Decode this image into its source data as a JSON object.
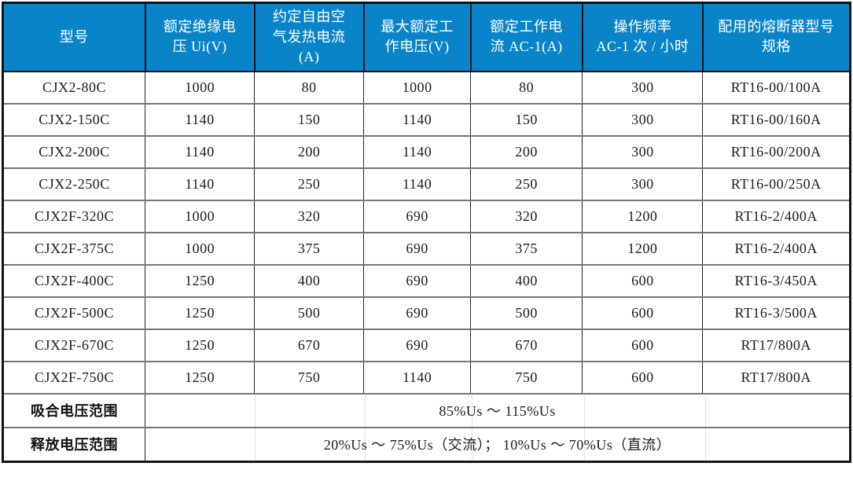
{
  "colors": {
    "header_bg": "#0a84c8",
    "header_text": "#ffffff",
    "body_text": "#1c1c1c",
    "grid_horizontal": "#767676",
    "grid_vertical": "#242424",
    "outer_border": "#141414"
  },
  "table": {
    "columns": [
      {
        "id": "model",
        "label": "型号"
      },
      {
        "id": "insulation-voltage",
        "label": "额定绝缘电\n压 Ui(V)"
      },
      {
        "id": "thermal-current",
        "label": "约定自由空\n气发热电流\n(A)"
      },
      {
        "id": "max-working-voltage",
        "label": "最大额定工\n作电压(V)"
      },
      {
        "id": "working-current",
        "label": "额定工作电\n流 AC-1(A)"
      },
      {
        "id": "operating-frequency",
        "label": "操作频率\nAC-1 次 / 小时"
      },
      {
        "id": "fuse-spec",
        "label": "配用的熔断器型号\n规格"
      }
    ],
    "rows": [
      [
        "CJX2-80C",
        "1000",
        "80",
        "1000",
        "80",
        "300",
        "RT16-00/100A"
      ],
      [
        "CJX2-150C",
        "1140",
        "150",
        "1140",
        "150",
        "300",
        "RT16-00/160A"
      ],
      [
        "CJX2-200C",
        "1140",
        "200",
        "1140",
        "200",
        "300",
        "RT16-00/200A"
      ],
      [
        "CJX2-250C",
        "1140",
        "250",
        "1140",
        "250",
        "300",
        "RT16-00/250A"
      ],
      [
        "CJX2F-320C",
        "1000",
        "320",
        "690",
        "320",
        "1200",
        "RT16-2/400A"
      ],
      [
        "CJX2F-375C",
        "1000",
        "375",
        "690",
        "375",
        "1200",
        "RT16-2/400A"
      ],
      [
        "CJX2F-400C",
        "1250",
        "400",
        "690",
        "400",
        "600",
        "RT16-3/450A"
      ],
      [
        "CJX2F-500C",
        "1250",
        "500",
        "690",
        "500",
        "600",
        "RT16-3/500A"
      ],
      [
        "CJX2F-670C",
        "1250",
        "670",
        "690",
        "670",
        "600",
        "RT17/800A"
      ],
      [
        "CJX2F-750C",
        "1250",
        "750",
        "1140",
        "750",
        "600",
        "RT17/800A"
      ]
    ],
    "footer_rows": [
      {
        "label": "吸合电压范围",
        "value": "85%Us ～ 115%Us"
      },
      {
        "label": "释放电压范围",
        "value": "20%Us ～ 75%Us（交流）； 10%Us ～ 70%Us（直流）"
      }
    ]
  }
}
